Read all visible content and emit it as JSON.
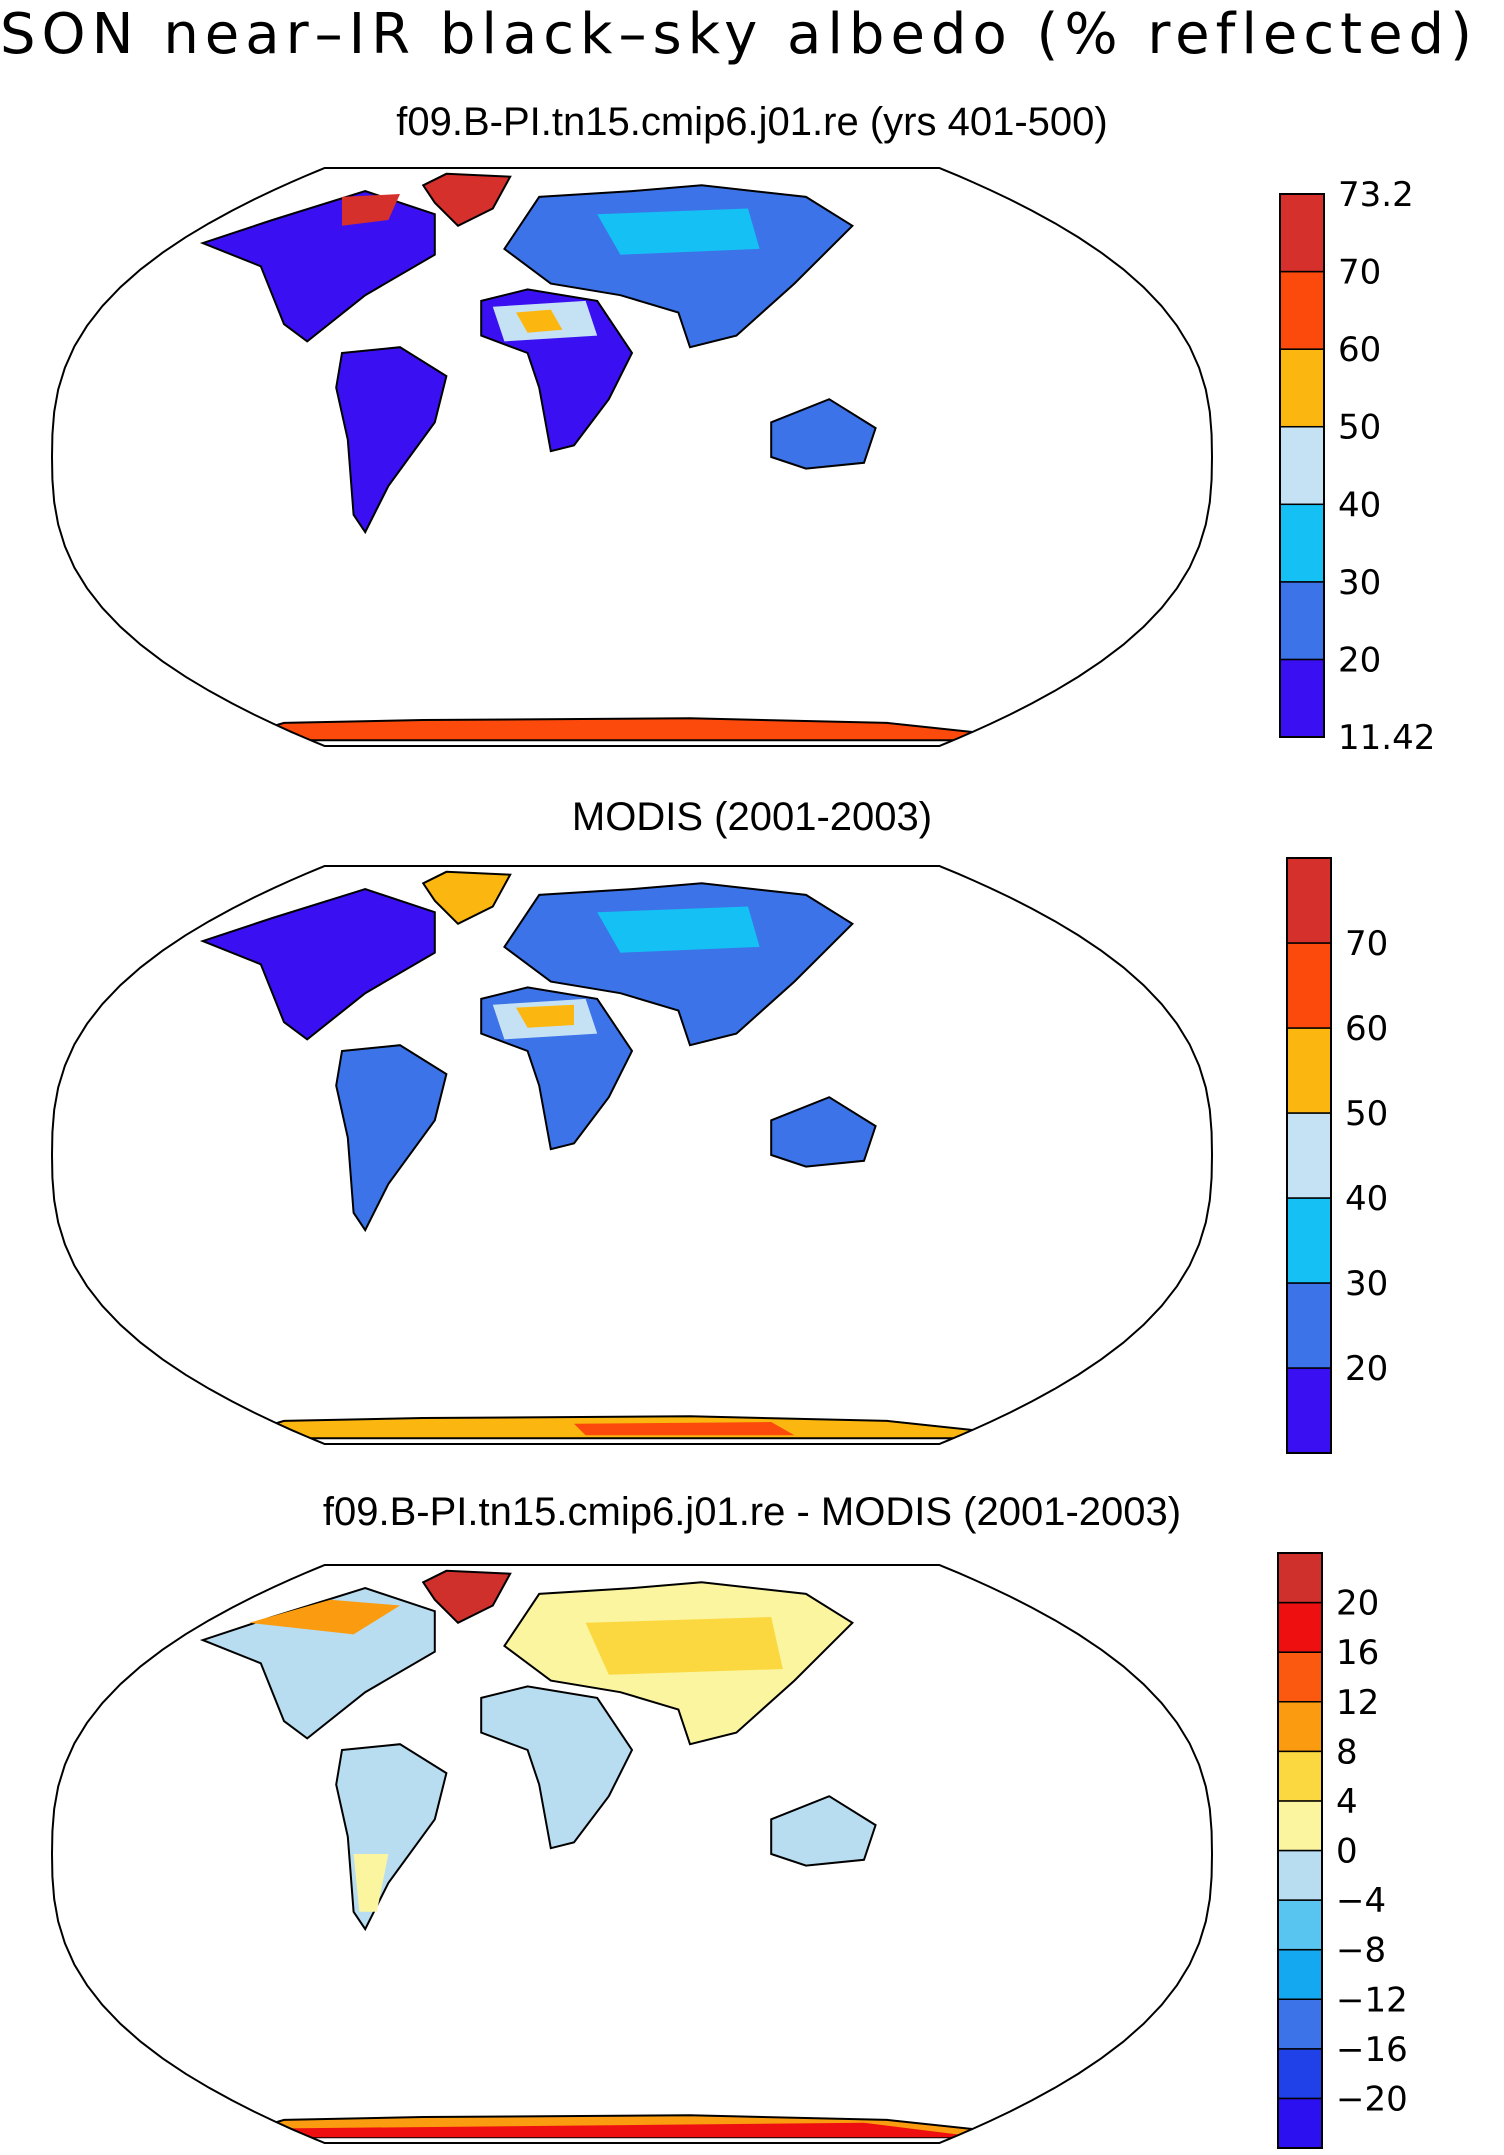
{
  "figure": {
    "title": "SON near–IR black–sky albedo (% reflected)"
  },
  "panels": [
    {
      "title": "f09.B-PI.tn15.cmip6.j01.re (yrs 401-500)",
      "colorbar": {
        "colors": [
          "#3a10f2",
          "#3c73e8",
          "#14c0f4",
          "#c5e2f4",
          "#fbb710",
          "#fb4a0c",
          "#d5302c"
        ],
        "labels": [
          "11.42",
          "20",
          "30",
          "40",
          "50",
          "60",
          "70",
          "73.2"
        ]
      }
    },
    {
      "title": "MODIS (2001-2003)",
      "colorbar": {
        "colors": [
          "#3a10f2",
          "#3c73e8",
          "#14c0f4",
          "#c5e2f4",
          "#fbb710",
          "#fb4a0c",
          "#d5302c"
        ],
        "labels": [
          "",
          "20",
          "30",
          "40",
          "50",
          "60",
          "70",
          ""
        ]
      }
    },
    {
      "title": "f09.B-PI.tn15.cmip6.j01.re - MODIS (2001-2003)",
      "colorbar": {
        "colors": [
          "#2d10f0",
          "#2040e8",
          "#3c73e8",
          "#14a8f0",
          "#58c4f0",
          "#b8dcf0",
          "#fbf5a0",
          "#fbd840",
          "#fb9c10",
          "#fb5810",
          "#ee1010",
          "#d0302c"
        ],
        "labels": [
          "",
          "−20",
          "−16",
          "−12",
          "−8",
          "−4",
          "0",
          "4",
          "8",
          "12",
          "16",
          "20",
          ""
        ]
      }
    }
  ],
  "chart_data": [
    {
      "type": "heatmap",
      "title": "f09.B-PI.tn15.cmip6.j01.re (yrs 401-500)",
      "projection": "Robinson, global land",
      "levels": [
        11.42,
        20,
        30,
        40,
        50,
        60,
        70,
        73.2
      ],
      "colorbar_labels": [
        "11.42",
        "20",
        "30",
        "40",
        "50",
        "60",
        "70",
        "73.2"
      ]
    },
    {
      "type": "heatmap",
      "title": "MODIS (2001-2003)",
      "projection": "Robinson, global land",
      "levels": [
        20,
        30,
        40,
        50,
        60,
        70
      ],
      "colorbar_labels": [
        "20",
        "30",
        "40",
        "50",
        "60",
        "70"
      ]
    },
    {
      "type": "heatmap",
      "title": "f09.B-PI.tn15.cmip6.j01.re - MODIS (2001-2003)",
      "projection": "Robinson, global land",
      "levels": [
        -20,
        -16,
        -12,
        -8,
        -4,
        0,
        4,
        8,
        12,
        16,
        20
      ],
      "colorbar_labels": [
        "−20",
        "−16",
        "−12",
        "−8",
        "−4",
        "0",
        "4",
        "8",
        "12",
        "16",
        "20"
      ]
    }
  ]
}
